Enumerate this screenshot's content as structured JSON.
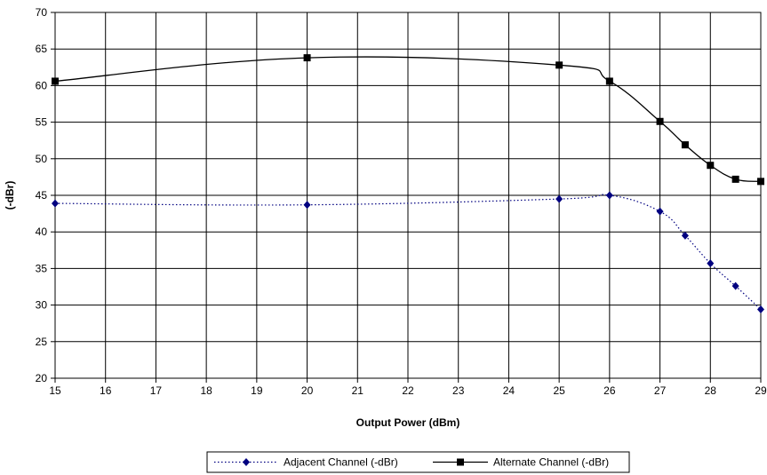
{
  "chart_data": {
    "type": "line",
    "xlabel": "Output Power (dBm)",
    "ylabel": "(-dBr)",
    "xlim": [
      15,
      29
    ],
    "ylim": [
      20,
      70
    ],
    "x_ticks": [
      "15",
      "16",
      "17",
      "18",
      "19",
      "20",
      "21",
      "22",
      "23",
      "24",
      "25",
      "26",
      "27",
      "28",
      "29"
    ],
    "y_ticks": [
      "20",
      "25",
      "30",
      "35",
      "40",
      "45",
      "50",
      "55",
      "60",
      "65",
      "70"
    ],
    "grid": true,
    "legend_position": "bottom",
    "series": [
      {
        "name": "Adjacent Channel (-dBr)",
        "color": "#000080",
        "line_style": "dotted",
        "marker": "diamond",
        "x": [
          15,
          20,
          25,
          26,
          27,
          27.5,
          28,
          28.5,
          29
        ],
        "y": [
          43.9,
          43.7,
          44.5,
          45.0,
          42.8,
          39.5,
          35.7,
          32.6,
          29.4
        ]
      },
      {
        "name": "Alternate Channel (-dBr)",
        "color": "#000000",
        "line_style": "solid",
        "marker": "square",
        "x": [
          15,
          20,
          25,
          26,
          27,
          27.5,
          28,
          28.5,
          29
        ],
        "y": [
          60.6,
          63.8,
          62.8,
          60.6,
          55.1,
          51.9,
          49.1,
          47.2,
          46.9
        ]
      }
    ]
  }
}
